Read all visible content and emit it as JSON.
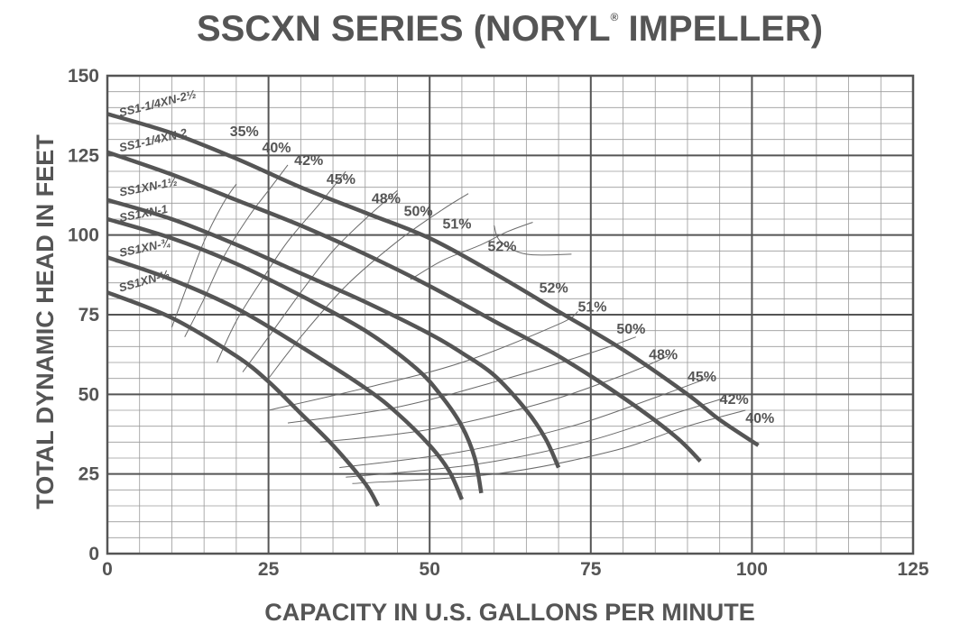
{
  "title": "SSCXN SERIES (NORYL",
  "title_mark": "®",
  "title_suffix": " IMPELLER)",
  "chart_data": {
    "type": "line",
    "xlabel": "CAPACITY IN U.S. GALLONS PER MINUTE",
    "ylabel": "TOTAL DYNAMIC HEAD IN FEET",
    "xlim": [
      0,
      125
    ],
    "ylim": [
      0,
      150
    ],
    "x_ticks": [
      "0",
      "25",
      "50",
      "75",
      "100",
      "125"
    ],
    "y_ticks": [
      "0",
      "25",
      "50",
      "75",
      "100",
      "125",
      "150"
    ],
    "grid": true,
    "series": [
      {
        "name": "SS1-1/4XN-2½",
        "points": [
          [
            0,
            138
          ],
          [
            10,
            132
          ],
          [
            20,
            124
          ],
          [
            30,
            115
          ],
          [
            40,
            107
          ],
          [
            50,
            99
          ],
          [
            60,
            88
          ],
          [
            70,
            76
          ],
          [
            80,
            64
          ],
          [
            90,
            50
          ],
          [
            95,
            42
          ],
          [
            101,
            34
          ]
        ]
      },
      {
        "name": "SS1-1/4XN-2",
        "points": [
          [
            0,
            126
          ],
          [
            10,
            119
          ],
          [
            20,
            111
          ],
          [
            30,
            103
          ],
          [
            40,
            94
          ],
          [
            50,
            84
          ],
          [
            60,
            73
          ],
          [
            70,
            62
          ],
          [
            80,
            49
          ],
          [
            88,
            37
          ],
          [
            92,
            29
          ]
        ]
      },
      {
        "name": "SS1XN-1½",
        "points": [
          [
            0,
            111
          ],
          [
            10,
            105
          ],
          [
            20,
            97
          ],
          [
            30,
            88
          ],
          [
            40,
            79
          ],
          [
            50,
            69
          ],
          [
            55,
            63
          ],
          [
            60,
            56
          ],
          [
            65,
            45
          ],
          [
            68,
            36
          ],
          [
            70,
            27
          ]
        ]
      },
      {
        "name": "SS1XN-1",
        "points": [
          [
            0,
            105
          ],
          [
            10,
            99
          ],
          [
            20,
            91
          ],
          [
            30,
            81
          ],
          [
            40,
            70
          ],
          [
            48,
            58
          ],
          [
            52,
            49
          ],
          [
            55,
            40
          ],
          [
            57,
            30
          ],
          [
            58,
            19
          ]
        ]
      },
      {
        "name": "SS1XN-¾",
        "points": [
          [
            0,
            93
          ],
          [
            10,
            86
          ],
          [
            20,
            77
          ],
          [
            30,
            65
          ],
          [
            40,
            52
          ],
          [
            45,
            44
          ],
          [
            50,
            34
          ],
          [
            53,
            26
          ],
          [
            55,
            17
          ]
        ]
      },
      {
        "name": "SS1XN-½",
        "points": [
          [
            0,
            82
          ],
          [
            10,
            74
          ],
          [
            20,
            62
          ],
          [
            25,
            54
          ],
          [
            30,
            44
          ],
          [
            35,
            34
          ],
          [
            40,
            22
          ],
          [
            42,
            15
          ]
        ]
      }
    ],
    "efficiency_labels": [
      "35%",
      "40%",
      "42%",
      "45%",
      "48%",
      "50%",
      "51%",
      "52%",
      "52%",
      "51%",
      "50%",
      "48%",
      "45%",
      "42%",
      "40%"
    ]
  }
}
